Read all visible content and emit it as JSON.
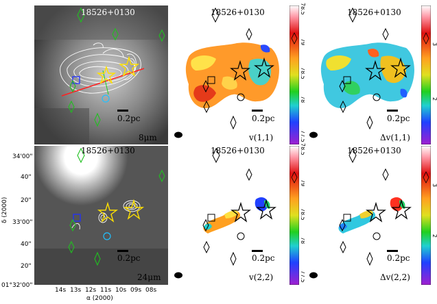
{
  "figure": {
    "source_name": "18526+0130",
    "scale_bar": "0.2pc",
    "panels": [
      {
        "id": "p1",
        "band": "8μm"
      },
      {
        "id": "p2",
        "map": "v(1,1)"
      },
      {
        "id": "p3",
        "map": "Δv(1,1)"
      },
      {
        "id": "p4",
        "band": "24μm"
      },
      {
        "id": "p5",
        "map": "v(2,2)"
      },
      {
        "id": "p6",
        "map": "Δv(2,2)"
      }
    ],
    "dec_axis": {
      "label": "δ (2000)",
      "ticks": [
        "34'00\"",
        "40\"",
        "20\"",
        "33'00\"",
        "40\"",
        "20\"",
        "01°32'00\""
      ]
    },
    "ra_axis": {
      "label": "α (2000)",
      "ticks": [
        "14s",
        "13s",
        "12s",
        "11s",
        "10s",
        "09s",
        "08s"
      ]
    },
    "colorbars": [
      {
        "id": "cb-v11",
        "ticks": [
          "78.5",
          "79",
          "78.5",
          "78",
          "77.5"
        ]
      },
      {
        "id": "cb-dv11",
        "ticks": [
          "3",
          "2"
        ]
      },
      {
        "id": "cb-v22",
        "ticks": [
          "78.5",
          "79",
          "78.5",
          "78",
          "77.5"
        ]
      },
      {
        "id": "cb-dv22",
        "ticks": [
          "3",
          "2"
        ]
      }
    ]
  }
}
